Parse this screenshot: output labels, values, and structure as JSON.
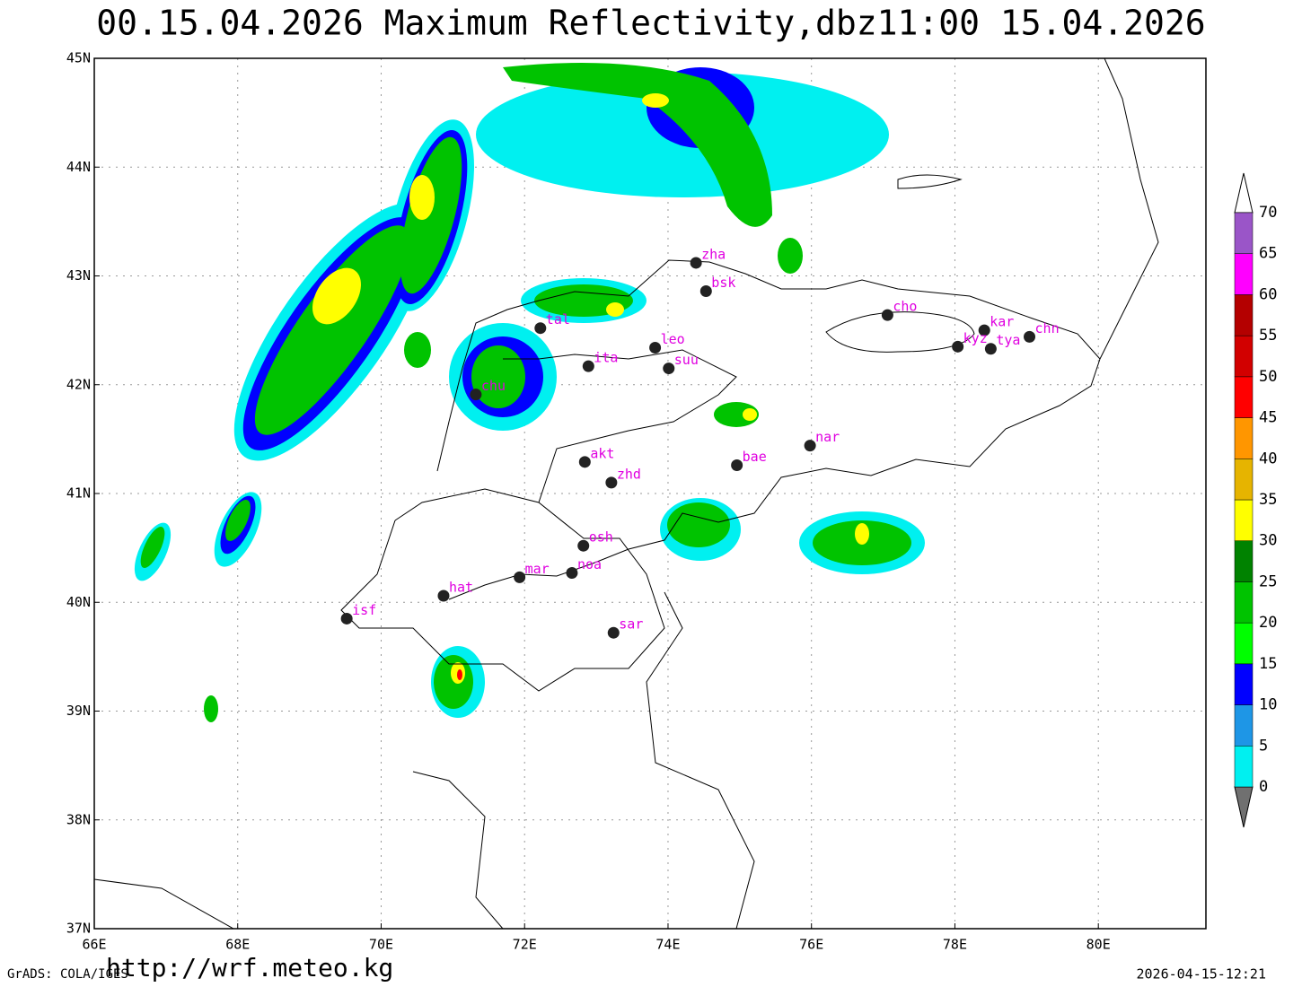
{
  "title": "00.15.04.2026  Maximum  Reflectivity,dbz11:00  15.04.2026",
  "map": {
    "lon_range": [
      66,
      81.5
    ],
    "lat_range": [
      37,
      45
    ],
    "lon_ticks": [
      {
        "value": 66,
        "label": "66E"
      },
      {
        "value": 68,
        "label": "68E"
      },
      {
        "value": 70,
        "label": "70E"
      },
      {
        "value": 72,
        "label": "72E"
      },
      {
        "value": 74,
        "label": "74E"
      },
      {
        "value": 76,
        "label": "76E"
      },
      {
        "value": 78,
        "label": "78E"
      },
      {
        "value": 80,
        "label": "80E"
      }
    ],
    "lat_ticks": [
      {
        "value": 37,
        "label": "37N"
      },
      {
        "value": 38,
        "label": "38N"
      },
      {
        "value": 39,
        "label": "39N"
      },
      {
        "value": 40,
        "label": "40N"
      },
      {
        "value": 41,
        "label": "41N"
      },
      {
        "value": 42,
        "label": "42N"
      },
      {
        "value": 43,
        "label": "43N"
      },
      {
        "value": 44,
        "label": "44N"
      },
      {
        "value": 45,
        "label": "45N"
      }
    ],
    "stations": [
      {
        "name": "zha",
        "lon": 74.39,
        "lat": 43.12
      },
      {
        "name": "bsk",
        "lon": 74.53,
        "lat": 42.86
      },
      {
        "name": "tal",
        "lon": 72.22,
        "lat": 42.52
      },
      {
        "name": "cho",
        "lon": 77.06,
        "lat": 42.64
      },
      {
        "name": "kar",
        "lon": 78.41,
        "lat": 42.5
      },
      {
        "name": "kyz",
        "lon": 78.04,
        "lat": 42.35
      },
      {
        "name": "tya",
        "lon": 78.5,
        "lat": 42.33
      },
      {
        "name": "chn",
        "lon": 79.04,
        "lat": 42.44
      },
      {
        "name": "leo",
        "lon": 73.82,
        "lat": 42.34
      },
      {
        "name": "ita",
        "lon": 72.89,
        "lat": 42.17
      },
      {
        "name": "suu",
        "lon": 74.01,
        "lat": 42.15
      },
      {
        "name": "chu",
        "lon": 71.32,
        "lat": 41.91
      },
      {
        "name": "nar",
        "lon": 75.98,
        "lat": 41.44
      },
      {
        "name": "bae",
        "lon": 74.96,
        "lat": 41.26
      },
      {
        "name": "akt",
        "lon": 72.84,
        "lat": 41.29
      },
      {
        "name": "zhd",
        "lon": 73.21,
        "lat": 41.1
      },
      {
        "name": "osh",
        "lon": 72.82,
        "lat": 40.52
      },
      {
        "name": "mar",
        "lon": 71.93,
        "lat": 40.23
      },
      {
        "name": "noa",
        "lon": 72.66,
        "lat": 40.27
      },
      {
        "name": "hat",
        "lon": 70.87,
        "lat": 40.06
      },
      {
        "name": "isf",
        "lon": 69.52,
        "lat": 39.85
      },
      {
        "name": "sar",
        "lon": 73.24,
        "lat": 39.72
      }
    ]
  },
  "colorbar": {
    "levels": [
      0,
      5,
      10,
      15,
      20,
      25,
      30,
      35,
      40,
      45,
      50,
      55,
      60,
      65,
      70
    ],
    "colors": [
      "#00f0f0",
      "#1e96e6",
      "#0000ff",
      "#00ff00",
      "#00c300",
      "#008200",
      "#ffff00",
      "#e6b400",
      "#ff9600",
      "#ff0000",
      "#d20000",
      "#b40000",
      "#ff00ff",
      "#9a55c8"
    ],
    "under_color": "#707070",
    "over_color": "#ffffff"
  },
  "footer": {
    "software": "GrADS: COLA/IGES",
    "url": "http://wrf.meteo.kg",
    "timestamp": "2026-04-15-12:21"
  }
}
